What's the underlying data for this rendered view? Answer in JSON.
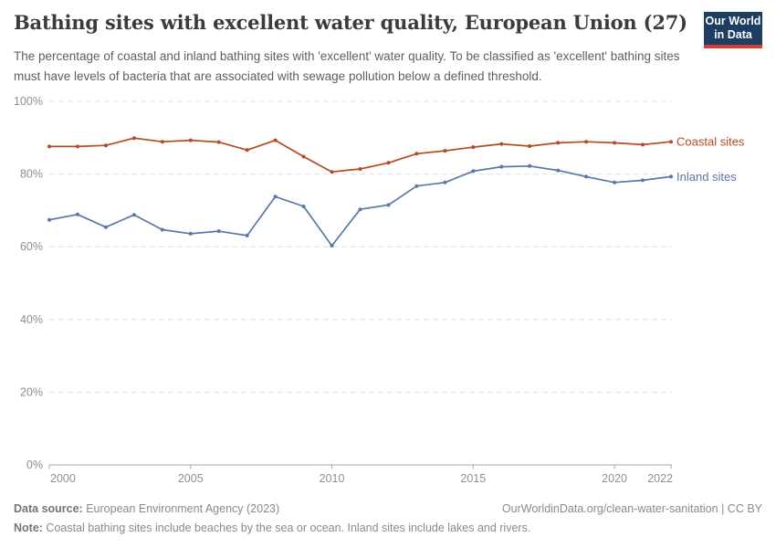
{
  "header": {
    "title": "Bathing sites with excellent water quality, European Union (27)",
    "subtitle": "The percentage of coastal and inland bathing sites with 'excellent' water quality. To be classified as 'excellent' bathing sites must have levels of bacteria that are associated with sewage pollution below a defined threshold.",
    "logo": {
      "line1": "Our World",
      "line2": "in Data",
      "bg_color": "#1d3d63",
      "accent_color": "#d93a31"
    }
  },
  "chart_data": {
    "type": "line",
    "title": "Bathing sites with excellent water quality, European Union (27)",
    "xlabel": "",
    "ylabel": "",
    "x": [
      2000,
      2001,
      2002,
      2003,
      2004,
      2005,
      2006,
      2007,
      2008,
      2009,
      2010,
      2011,
      2012,
      2013,
      2014,
      2015,
      2016,
      2017,
      2018,
      2019,
      2020,
      2021,
      2022
    ],
    "series": [
      {
        "name": "Coastal sites",
        "color": "#b64a20",
        "values": [
          87.6,
          87.6,
          87.9,
          89.9,
          88.9,
          89.3,
          88.8,
          86.6,
          89.3,
          84.8,
          80.6,
          81.4,
          83.1,
          85.6,
          86.4,
          87.4,
          88.3,
          87.7,
          88.6,
          88.9,
          88.6,
          88.1,
          88.9
        ]
      },
      {
        "name": "Inland sites",
        "color": "#5878a8",
        "values": [
          67.4,
          68.9,
          65.4,
          68.8,
          64.7,
          63.6,
          64.3,
          63.1,
          73.8,
          71.1,
          60.3,
          70.3,
          71.5,
          76.7,
          77.7,
          80.8,
          82.0,
          82.2,
          81.0,
          79.3,
          77.7,
          78.3,
          79.3
        ]
      }
    ],
    "ylim": [
      0,
      100
    ],
    "yticks": [
      0,
      20,
      40,
      60,
      80,
      100
    ],
    "ytick_suffix": "%",
    "xticks": [
      2000,
      2005,
      2010,
      2015,
      2020,
      2022
    ],
    "grid": "horizontal-dashed",
    "legend_position": "right-end-labels",
    "axis_text_color": "#8f8f8f",
    "gridline_color": "#e0e0e0",
    "axis_line_color": "#a8a8a8"
  },
  "footer": {
    "source_label": "Data source:",
    "source_text": " European Environment Agency (2023)",
    "link_text": "OurWorldinData.org/clean-water-sanitation",
    "license_sep": " | ",
    "license_text": "CC BY",
    "note_label": "Note:",
    "note_text": " Coastal bathing sites include beaches by the sea or ocean. Inland sites include lakes and rivers."
  }
}
